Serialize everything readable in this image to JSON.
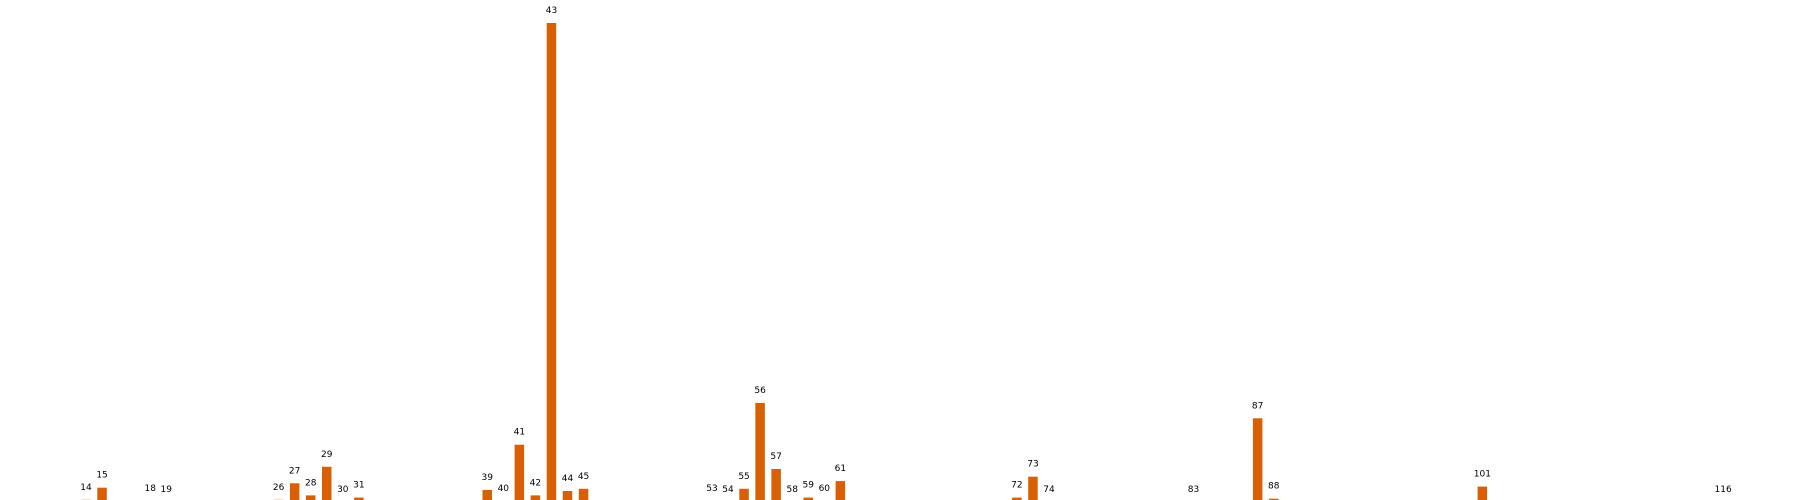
{
  "chart_data": {
    "type": "bar",
    "title": "",
    "xlabel": "",
    "ylabel": "",
    "axes_visible": false,
    "grid": false,
    "bar_color": "#d95f02",
    "ylim": [
      0,
      43.5
    ],
    "xlim": [
      9,
      122
    ],
    "categories": [
      "14",
      "15",
      "18",
      "19",
      "26",
      "27",
      "28",
      "29",
      "30",
      "31",
      "39",
      "40",
      "41",
      "42",
      "43",
      "44",
      "45",
      "53",
      "54",
      "55",
      "56",
      "57",
      "58",
      "59",
      "60",
      "61",
      "72",
      "73",
      "74",
      "83",
      "87",
      "88",
      "101",
      "116"
    ],
    "x": [
      14,
      15,
      18,
      19,
      26,
      27,
      28,
      29,
      30,
      31,
      39,
      40,
      41,
      42,
      43,
      44,
      45,
      53,
      54,
      55,
      56,
      57,
      58,
      59,
      60,
      61,
      72,
      73,
      74,
      83,
      87,
      88,
      101,
      116
    ],
    "values": [
      0.2,
      1.3,
      0.1,
      0,
      0.2,
      1.7,
      0.6,
      3.2,
      0,
      0.4,
      1.1,
      0.1,
      5.2,
      0.6,
      43.5,
      1.0,
      1.2,
      0.1,
      0,
      1.2,
      9.0,
      3.0,
      0,
      0.4,
      0.1,
      1.9,
      0.4,
      2.3,
      0,
      0,
      7.6,
      0.3,
      1.4,
      0
    ]
  }
}
